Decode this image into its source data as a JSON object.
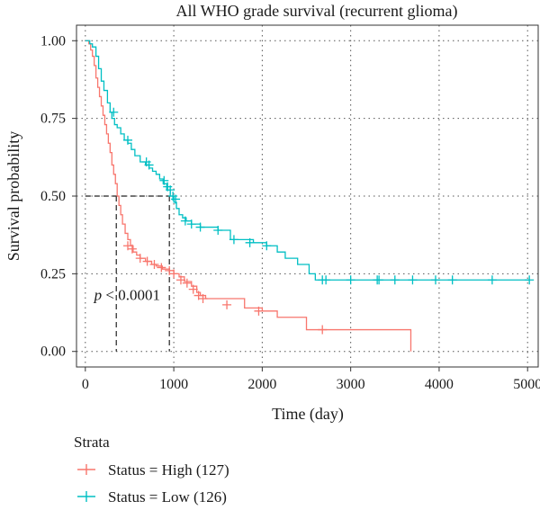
{
  "chart_data": {
    "type": "line",
    "subtype": "kaplan-meier",
    "title": "All WHO grade survival (recurrent glioma)",
    "xlabel": "Time (day)",
    "ylabel": "Survival probability",
    "xlim": [
      -100,
      5120
    ],
    "ylim": [
      -0.05,
      1.05
    ],
    "xticks": [
      0,
      1000,
      2000,
      3000,
      4000,
      5000
    ],
    "yticks": [
      0.0,
      0.25,
      0.5,
      0.75,
      1.0
    ],
    "xtick_labels": [
      "0",
      "1000",
      "2000",
      "3000",
      "4000",
      "5000"
    ],
    "ytick_labels": [
      "0.00",
      "0.25",
      "0.50",
      "0.75",
      "1.00"
    ],
    "grid": true,
    "annotation": {
      "p_symbol": "p",
      "p_rest": " < 0.0001",
      "x": 100,
      "y": 0.18
    },
    "median_lines": [
      {
        "series": "Status = High (127)",
        "x": 350,
        "y": 0.5
      },
      {
        "series": "Status = Low (126)",
        "x": 950,
        "y": 0.5
      }
    ],
    "legend": {
      "title": "Strata",
      "placement": "bottom-left"
    },
    "series": [
      {
        "name": "Status = High (127)",
        "color": "#F8766D",
        "points": [
          [
            0,
            1.0
          ],
          [
            40,
            0.99
          ],
          [
            60,
            0.97
          ],
          [
            80,
            0.95
          ],
          [
            100,
            0.92
          ],
          [
            120,
            0.88
          ],
          [
            140,
            0.85
          ],
          [
            160,
            0.82
          ],
          [
            180,
            0.79
          ],
          [
            200,
            0.76
          ],
          [
            220,
            0.73
          ],
          [
            240,
            0.7
          ],
          [
            260,
            0.67
          ],
          [
            280,
            0.64
          ],
          [
            300,
            0.6
          ],
          [
            320,
            0.57
          ],
          [
            340,
            0.54
          ],
          [
            360,
            0.5
          ],
          [
            380,
            0.47
          ],
          [
            400,
            0.44
          ],
          [
            420,
            0.41
          ],
          [
            450,
            0.38
          ],
          [
            480,
            0.36
          ],
          [
            510,
            0.34
          ],
          [
            540,
            0.32
          ],
          [
            580,
            0.31
          ],
          [
            620,
            0.3
          ],
          [
            680,
            0.29
          ],
          [
            750,
            0.28
          ],
          [
            800,
            0.275
          ],
          [
            870,
            0.265
          ],
          [
            950,
            0.26
          ],
          [
            1000,
            0.25
          ],
          [
            1060,
            0.24
          ],
          [
            1120,
            0.225
          ],
          [
            1200,
            0.21
          ],
          [
            1260,
            0.19
          ],
          [
            1300,
            0.18
          ],
          [
            1360,
            0.17
          ],
          [
            1800,
            0.14
          ],
          [
            2000,
            0.13
          ],
          [
            2170,
            0.11
          ],
          [
            2500,
            0.07
          ],
          [
            3680,
            0.07
          ],
          [
            3680,
            0.0
          ]
        ],
        "censored": [
          [
            480,
            0.34
          ],
          [
            530,
            0.33
          ],
          [
            620,
            0.3
          ],
          [
            700,
            0.29
          ],
          [
            780,
            0.28
          ],
          [
            860,
            0.27
          ],
          [
            950,
            0.26
          ],
          [
            1000,
            0.25
          ],
          [
            1080,
            0.23
          ],
          [
            1150,
            0.22
          ],
          [
            1220,
            0.2
          ],
          [
            1280,
            0.18
          ],
          [
            1330,
            0.17
          ],
          [
            1600,
            0.15
          ],
          [
            1960,
            0.13
          ],
          [
            2680,
            0.07
          ]
        ]
      },
      {
        "name": "Status = Low (126)",
        "color": "#00BFC4",
        "points": [
          [
            0,
            1.0
          ],
          [
            50,
            0.99
          ],
          [
            80,
            0.98
          ],
          [
            120,
            0.95
          ],
          [
            150,
            0.91
          ],
          [
            180,
            0.87
          ],
          [
            210,
            0.84
          ],
          [
            250,
            0.8
          ],
          [
            280,
            0.77
          ],
          [
            300,
            0.75
          ],
          [
            330,
            0.73
          ],
          [
            360,
            0.72
          ],
          [
            400,
            0.7
          ],
          [
            440,
            0.68
          ],
          [
            480,
            0.67
          ],
          [
            520,
            0.65
          ],
          [
            560,
            0.63
          ],
          [
            620,
            0.61
          ],
          [
            680,
            0.6
          ],
          [
            720,
            0.59
          ],
          [
            760,
            0.58
          ],
          [
            800,
            0.57
          ],
          [
            840,
            0.555
          ],
          [
            880,
            0.54
          ],
          [
            920,
            0.52
          ],
          [
            960,
            0.5
          ],
          [
            1000,
            0.48
          ],
          [
            1030,
            0.46
          ],
          [
            1060,
            0.44
          ],
          [
            1100,
            0.43
          ],
          [
            1140,
            0.42
          ],
          [
            1200,
            0.41
          ],
          [
            1300,
            0.4
          ],
          [
            1500,
            0.39
          ],
          [
            1640,
            0.36
          ],
          [
            1900,
            0.35
          ],
          [
            2050,
            0.34
          ],
          [
            2170,
            0.32
          ],
          [
            2260,
            0.3
          ],
          [
            2400,
            0.28
          ],
          [
            2530,
            0.25
          ],
          [
            2600,
            0.23
          ],
          [
            5020,
            0.23
          ]
        ],
        "censored": [
          [
            320,
            0.77
          ],
          [
            480,
            0.68
          ],
          [
            690,
            0.61
          ],
          [
            720,
            0.6
          ],
          [
            890,
            0.55
          ],
          [
            930,
            0.53
          ],
          [
            960,
            0.52
          ],
          [
            990,
            0.5
          ],
          [
            1020,
            0.49
          ],
          [
            1130,
            0.42
          ],
          [
            1200,
            0.41
          ],
          [
            1300,
            0.4
          ],
          [
            1500,
            0.39
          ],
          [
            1680,
            0.36
          ],
          [
            1860,
            0.35
          ],
          [
            2050,
            0.34
          ],
          [
            2680,
            0.23
          ],
          [
            2720,
            0.23
          ],
          [
            3000,
            0.23
          ],
          [
            3300,
            0.23
          ],
          [
            3320,
            0.23
          ],
          [
            3500,
            0.23
          ],
          [
            3700,
            0.23
          ],
          [
            3960,
            0.23
          ],
          [
            4150,
            0.23
          ],
          [
            4600,
            0.23
          ],
          [
            5020,
            0.23
          ]
        ]
      }
    ]
  }
}
